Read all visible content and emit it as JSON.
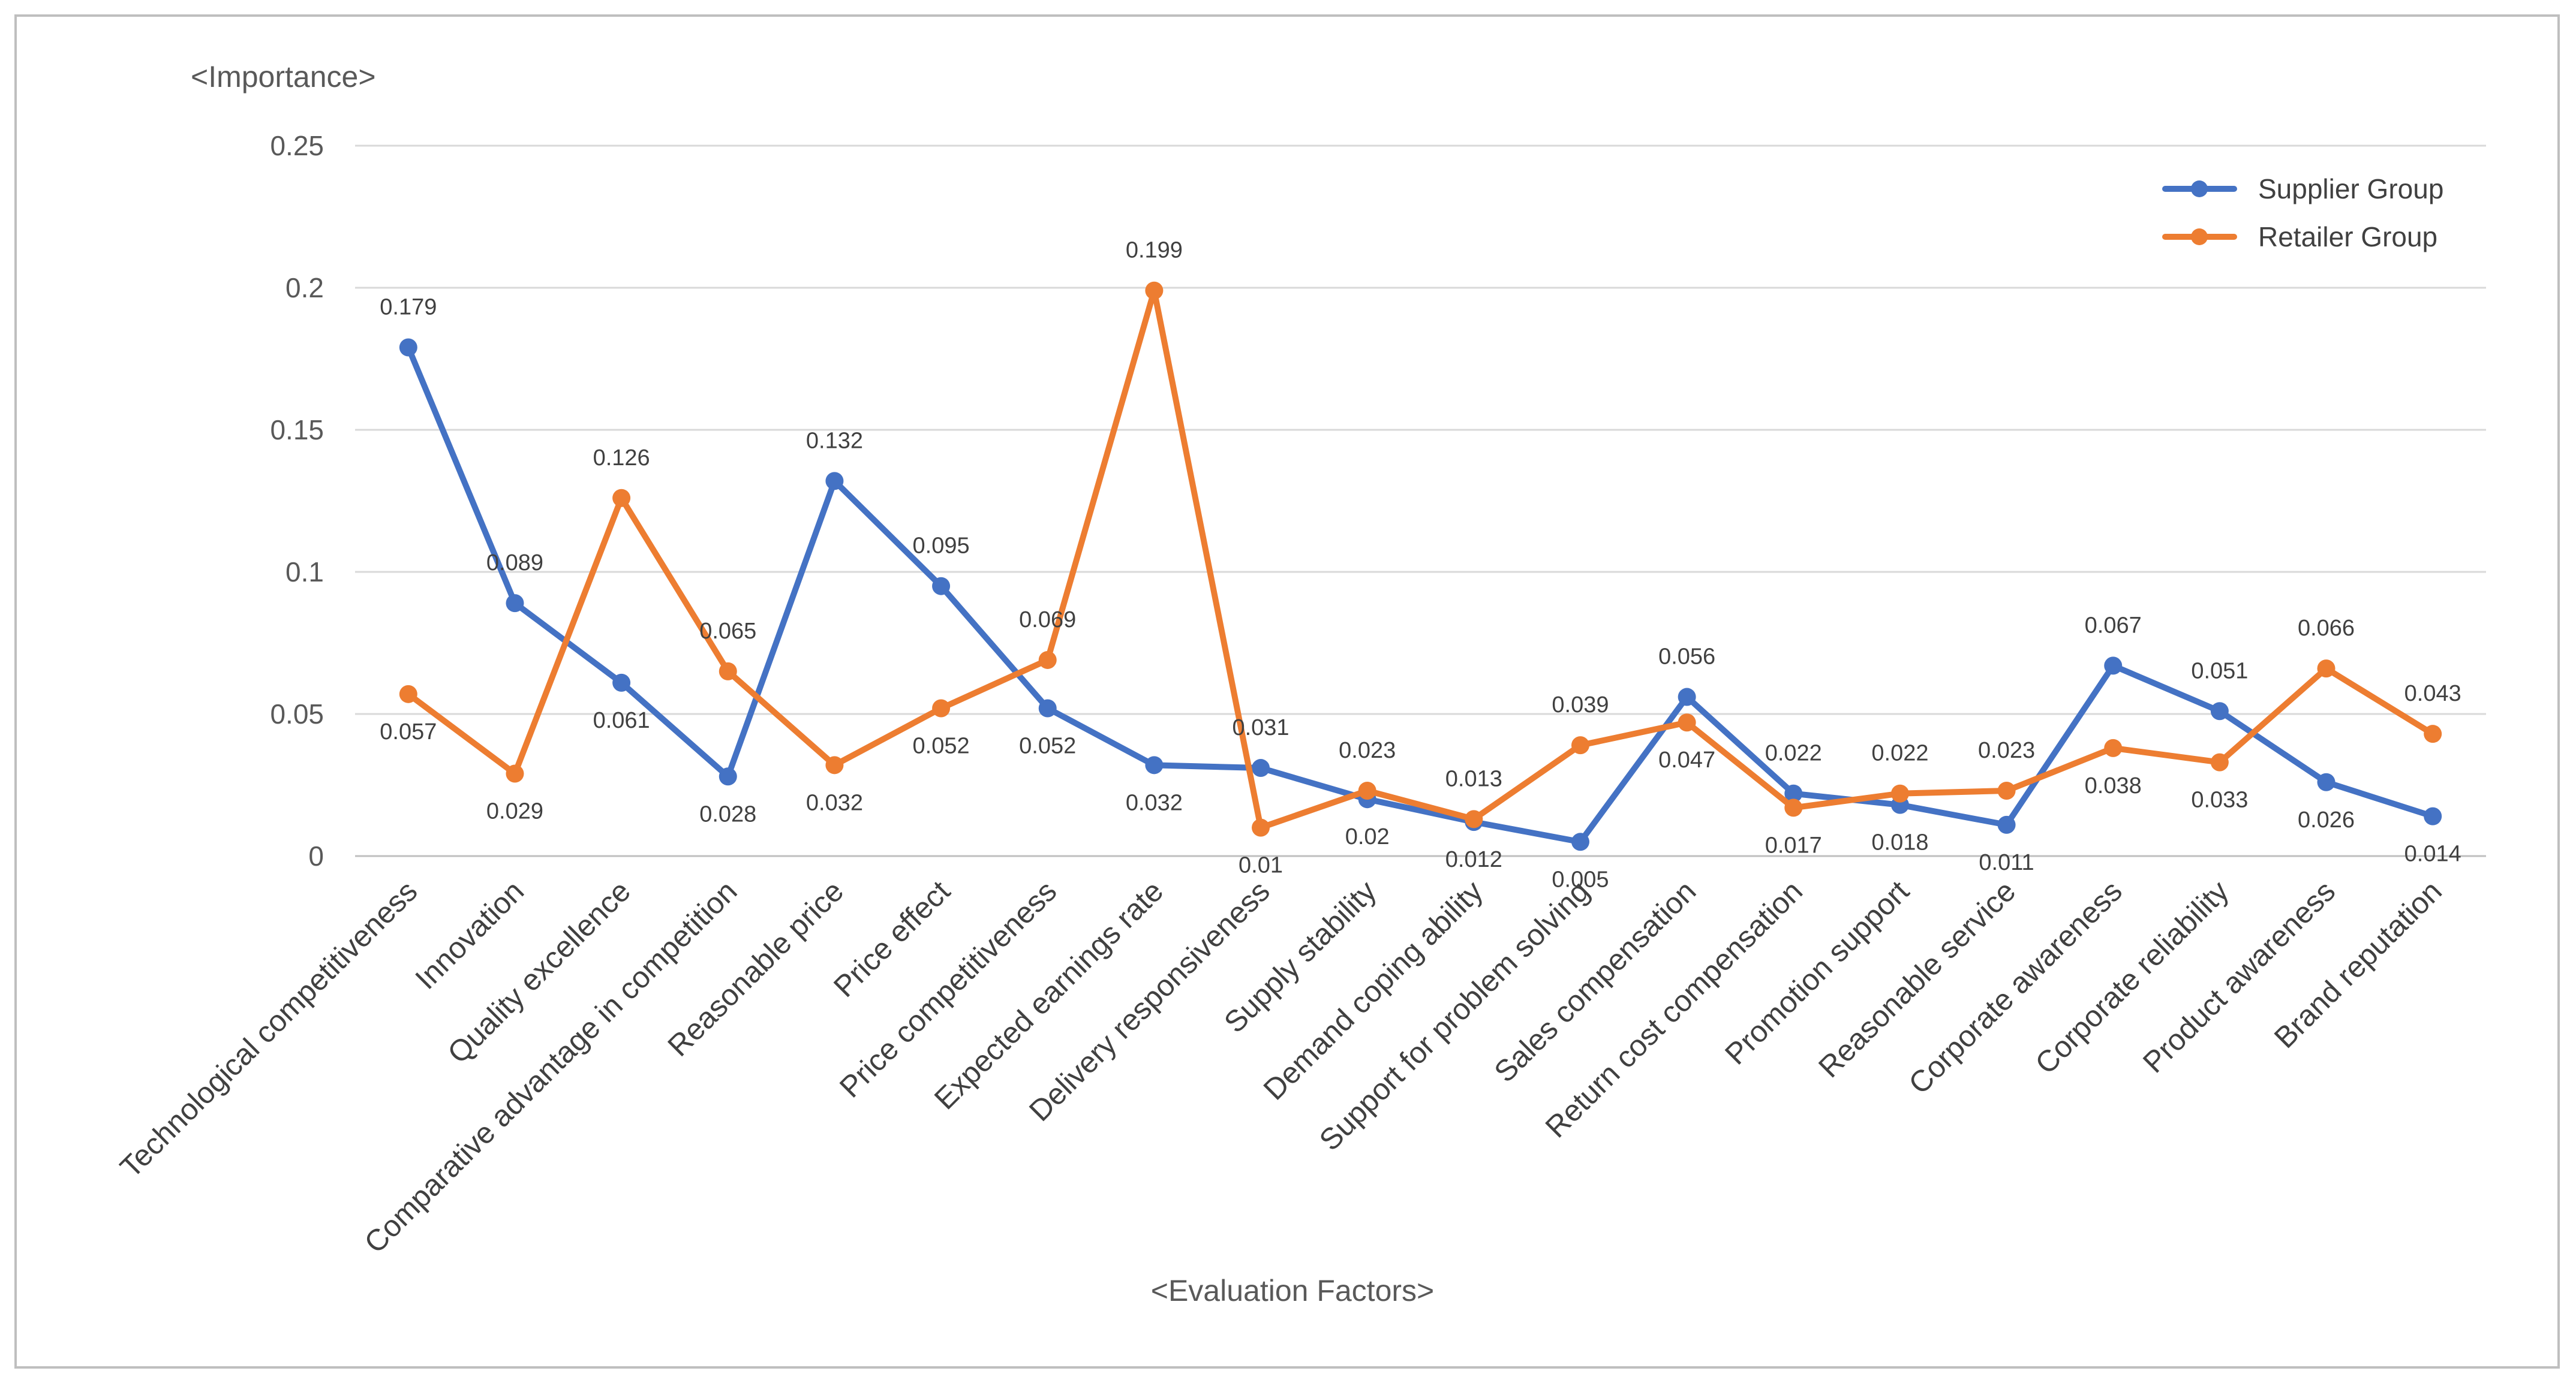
{
  "chart_data": {
    "type": "line",
    "ylabel": "<Importance>",
    "xlabel": "<Evaluation Factors>",
    "ylim": [
      0,
      0.25
    ],
    "yticks": [
      0,
      0.05,
      0.1,
      0.15,
      0.2,
      0.25
    ],
    "ytick_labels": [
      "0",
      "0.05",
      "0.1",
      "0.15",
      "0.2",
      "0.25"
    ],
    "grid": true,
    "legend_position": "top-right",
    "categories": [
      "Technological competitiveness",
      "Innovation",
      "Quality excellence",
      "Comparative advantage in competition",
      "Reasonable price",
      "Price effect",
      "Price competitiveness",
      "Expected earnings rate",
      "Delivery responsiveness",
      "Supply stability",
      "Demand coping ability",
      "Support for problem solving",
      "Sales compensation",
      "Return cost compensation",
      "Promotion support",
      "Reasonable service",
      "Corporate awareness",
      "Corporate reliability",
      "Product awareness",
      "Brand reputation"
    ],
    "series": [
      {
        "name": "Supplier Group",
        "color": "#4472c4",
        "values": [
          0.179,
          0.089,
          0.061,
          0.028,
          0.132,
          0.095,
          0.052,
          0.032,
          0.031,
          0.02,
          0.012,
          0.005,
          0.056,
          0.022,
          0.018,
          0.011,
          0.067,
          0.051,
          0.026,
          0.014
        ],
        "labels": [
          "0.179",
          "0.089",
          "0.061",
          "0.028",
          "0.132",
          "0.095",
          "0.052",
          "0.032",
          "0.031",
          "0.02",
          "0.012",
          "0.005",
          "0.056",
          "0.022",
          "0.018",
          "0.011",
          "0.067",
          "0.051",
          "0.026",
          "0.014"
        ]
      },
      {
        "name": "Retailer Group",
        "color": "#ed7d31",
        "values": [
          0.057,
          0.029,
          0.126,
          0.065,
          0.032,
          0.052,
          0.069,
          0.199,
          0.01,
          0.023,
          0.013,
          0.039,
          0.047,
          0.017,
          0.022,
          0.023,
          0.038,
          0.033,
          0.066,
          0.043
        ],
        "labels": [
          "0.057",
          "0.029",
          "0.126",
          "0.065",
          "0.032",
          "0.052",
          "0.069",
          "0.199",
          "0.01",
          "0.023",
          "0.013",
          "0.039",
          "0.047",
          "0.017",
          "0.022",
          "0.023",
          "0.038",
          "0.033",
          "0.066",
          "0.043"
        ]
      }
    ]
  }
}
